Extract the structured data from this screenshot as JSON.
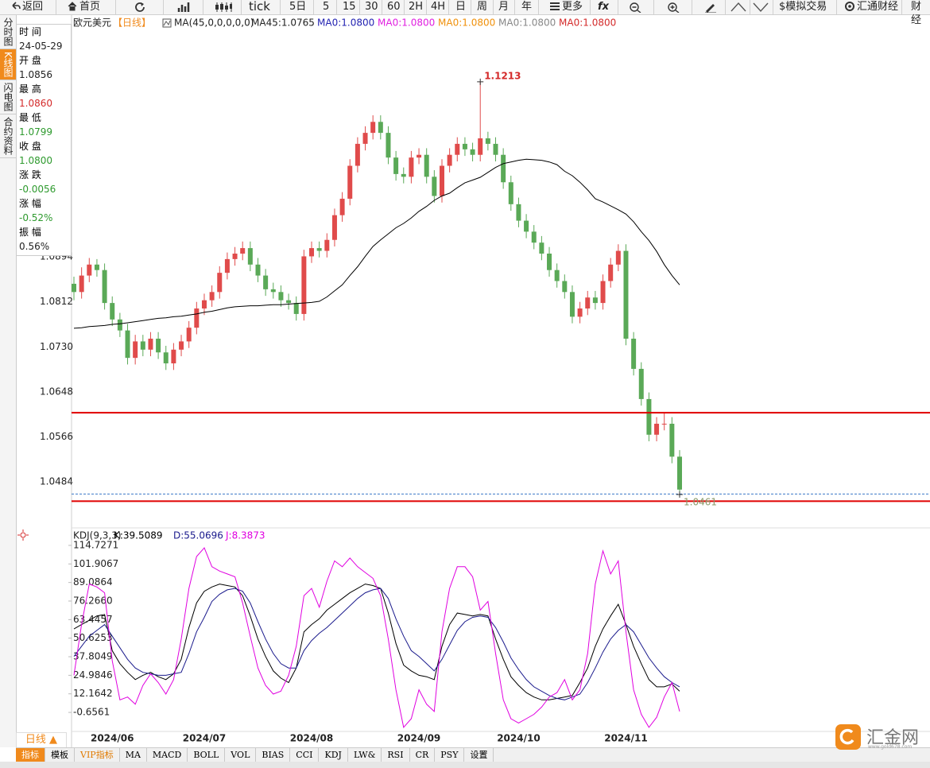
{
  "toolbar": [
    "返回",
    "首页",
    "tick",
    "5日",
    "5",
    "15",
    "30",
    "60",
    "2H",
    "4H",
    "日",
    "周",
    "月",
    "年",
    "更多",
    "fx",
    "$模拟交易",
    "汇通财经",
    "财经"
  ],
  "side_tabs": [
    "分时图",
    "K线图",
    "闪电图",
    "合约资料"
  ],
  "info_panel": [
    {
      "label": "时 间",
      "value": "24-05-29"
    },
    {
      "label": "开 盘",
      "value": "1.0856"
    },
    {
      "label": "最 高",
      "value": "1.0860"
    },
    {
      "label": "最 低",
      "value": "1.0799"
    },
    {
      "label": "收 盘",
      "value": "1.0800"
    },
    {
      "label": "涨 跌",
      "value": "-0.0056"
    },
    {
      "label": "涨 幅",
      "value": "-0.52%"
    },
    {
      "label": "振 幅",
      "value": "0.56%"
    }
  ],
  "bottom": {
    "period": "日线 ▲",
    "tabs": [
      "指标",
      "模板",
      "VIP指标",
      "MA",
      "MACD",
      "BOLL",
      "VOL",
      "BIAS",
      "CCI",
      "KDJ",
      "LW&",
      "RSI",
      "CR",
      "PSY",
      "设置"
    ]
  },
  "watermark": {
    "title": "汇金网",
    "url": "www.gold678.com"
  },
  "chart_data": [
    {
      "type": "candlestick",
      "title": "欧元美元",
      "subtitle": "【日线】",
      "indicator": "MA(45,0,0,0,0,0)",
      "up_color": "#e04b4b",
      "down_color": "#5aa957",
      "ylim": [
        1.0406,
        1.1336
      ],
      "yticks": [
        1.0894,
        1.0812,
        {
          "value": 1.073,
          "label": "1.0730"
        },
        1.0648,
        1.0566,
        1.0484
      ],
      "open": [
        1.0845,
        1.083,
        1.086,
        1.088,
        1.087,
        1.081,
        1.078,
        1.076,
        1.071,
        1.074,
        1.0725,
        1.0745,
        1.072,
        1.07,
        1.0725,
        1.074,
        1.0765,
        1.08,
        1.0815,
        1.083,
        1.0865,
        1.089,
        1.09,
        1.091,
        1.088,
        1.086,
        1.0835,
        1.083,
        1.0815,
        1.081,
        1.079,
        1.0895,
        1.091,
        1.0905,
        1.0925,
        1.097,
        1.1,
        1.106,
        1.11,
        1.112,
        1.114,
        1.112,
        1.1075,
        1.1045,
        1.104,
        1.1075,
        1.108,
        1.104,
        1.1005,
        1.106,
        1.108,
        1.11,
        1.109,
        1.108,
        1.111,
        1.11,
        1.108,
        1.103,
        1.099,
        1.096,
        1.094,
        1.092,
        1.09,
        1.087,
        1.085,
        1.083,
        1.0785,
        1.08,
        1.082,
        1.081,
        1.085,
        1.088,
        1.0905,
        1.0745,
        1.069,
        1.0635,
        1.057,
        1.059,
        1.059,
        1.053
      ],
      "high": [
        1.0858,
        1.0875,
        1.0892,
        1.089,
        1.0882,
        1.0822,
        1.0792,
        1.0772,
        1.0752,
        1.0752,
        1.0757,
        1.0757,
        1.0732,
        1.0737,
        1.0752,
        1.0777,
        1.0812,
        1.0827,
        1.0842,
        1.0877,
        1.0902,
        1.0912,
        1.0922,
        1.0922,
        1.0892,
        1.0872,
        1.0847,
        1.0842,
        1.0827,
        1.0822,
        1.0907,
        1.0922,
        1.0922,
        1.0937,
        1.0982,
        1.1012,
        1.1072,
        1.1112,
        1.1132,
        1.1152,
        1.1152,
        1.1132,
        1.1087,
        1.1057,
        1.1087,
        1.1092,
        1.1092,
        1.1052,
        1.1072,
        1.1092,
        1.1112,
        1.1112,
        1.1102,
        1.1213,
        1.1122,
        1.1112,
        1.1092,
        1.1042,
        1.1002,
        1.0972,
        1.0952,
        1.0932,
        1.0912,
        1.0882,
        1.0862,
        1.0842,
        1.0812,
        1.0832,
        1.0832,
        1.0862,
        1.0892,
        1.0917,
        1.0917,
        1.0757,
        1.0702,
        1.0647,
        1.0602,
        1.061,
        1.0602,
        1.0542
      ],
      "low": [
        1.0815,
        1.0818,
        1.0848,
        1.0858,
        1.0798,
        1.0768,
        1.0748,
        1.0698,
        1.0698,
        1.0713,
        1.0713,
        1.0708,
        1.0688,
        1.0688,
        1.0713,
        1.0728,
        1.0753,
        1.0788,
        1.0803,
        1.0818,
        1.0853,
        1.0878,
        1.0888,
        1.0868,
        1.0848,
        1.0823,
        1.0818,
        1.0803,
        1.0798,
        1.0778,
        1.0778,
        1.0883,
        1.0893,
        1.0893,
        1.0913,
        1.0958,
        1.0988,
        1.1048,
        1.1088,
        1.1108,
        1.1108,
        1.1063,
        1.1033,
        1.1028,
        1.1028,
        1.1063,
        1.1028,
        1.0993,
        1.0993,
        1.1048,
        1.1068,
        1.1078,
        1.1068,
        1.1068,
        1.1088,
        1.1068,
        1.1018,
        1.0978,
        1.0948,
        1.0928,
        1.0908,
        1.0888,
        1.0858,
        1.0838,
        1.0818,
        1.0773,
        1.0773,
        1.0788,
        1.0798,
        1.0798,
        1.0838,
        1.0868,
        1.0733,
        1.0678,
        1.0623,
        1.0558,
        1.0558,
        1.0578,
        1.0518,
        1.0461
      ],
      "close": [
        1.083,
        1.086,
        1.088,
        1.087,
        1.081,
        1.078,
        1.076,
        1.071,
        1.074,
        1.0725,
        1.0745,
        1.072,
        1.07,
        1.0725,
        1.074,
        1.0765,
        1.08,
        1.0815,
        1.083,
        1.0865,
        1.089,
        1.09,
        1.091,
        1.088,
        1.086,
        1.0835,
        1.083,
        1.0815,
        1.081,
        1.079,
        1.0895,
        1.091,
        1.0905,
        1.0925,
        1.097,
        1.1,
        1.106,
        1.11,
        1.112,
        1.114,
        1.112,
        1.1075,
        1.1045,
        1.104,
        1.1075,
        1.108,
        1.104,
        1.1005,
        1.106,
        1.108,
        1.11,
        1.109,
        1.108,
        1.111,
        1.11,
        1.108,
        1.103,
        1.099,
        1.096,
        1.094,
        1.092,
        1.09,
        1.087,
        1.085,
        1.083,
        1.0785,
        1.08,
        1.082,
        1.081,
        1.085,
        1.088,
        1.0905,
        1.0745,
        1.069,
        1.0635,
        1.057,
        1.059,
        1.059,
        1.053,
        1.047
      ],
      "series": [
        {
          "name": "MA45:1.0765",
          "color": "#000000",
          "values": [
            1.0764,
            1.0765,
            1.0767,
            1.0768,
            1.0769,
            1.0771,
            1.0772,
            1.0774,
            1.0776,
            1.0778,
            1.078,
            1.0782,
            1.0783,
            1.0785,
            1.0786,
            1.0788,
            1.079,
            1.0793,
            1.0795,
            1.0798,
            1.0801,
            1.0803,
            1.0804,
            1.0805,
            1.0805,
            1.0806,
            1.0807,
            1.0807,
            1.0808,
            1.0809,
            1.081,
            1.0811,
            1.0813,
            1.0821,
            1.0832,
            1.0843,
            1.086,
            1.0876,
            1.0895,
            1.0913,
            1.0925,
            1.0936,
            1.0947,
            1.0955,
            1.0965,
            1.0977,
            1.0986,
            1.0997,
            1.1005,
            1.101,
            1.102,
            1.1029,
            1.1034,
            1.1039,
            1.1048,
            1.1057,
            1.1064,
            1.1067,
            1.107,
            1.1072,
            1.1071,
            1.107,
            1.1067,
            1.1062,
            1.105,
            1.1042,
            1.103,
            1.1016,
            1.1,
            1.0994,
            1.0987,
            1.098,
            1.0972,
            1.0958,
            1.094,
            1.0924,
            1.0904,
            1.088,
            1.086,
            1.0843
          ]
        }
      ],
      "legend_items": [
        {
          "name": "MA0:1.0800",
          "color": "#1f1fb0"
        },
        {
          "name": "MA0:1.0800",
          "color": "#e01ee0"
        },
        {
          "name": "MA0:1.0800",
          "color": "#f0900a"
        },
        {
          "name": "MA0:1.0800",
          "color": "#888888"
        },
        {
          "name": "MA0:1.0800",
          "color": "#d42a2a"
        }
      ],
      "high_label": {
        "value": 1.1213,
        "label": "1.1213",
        "color": "#d42a2a"
      },
      "low_label": {
        "value": 1.0461,
        "label": "1.0461",
        "color": "#8a9a6a"
      },
      "hlines": [
        {
          "value": 1.061,
          "color": "#e00000"
        },
        {
          "value": 1.0449,
          "color": "#e00000"
        }
      ],
      "price_line": {
        "value": 1.0462,
        "color": "#3a78c8"
      }
    },
    {
      "type": "line",
      "title": "KDJ(9,3,3)",
      "ylim": [
        -13.8,
        124.6
      ],
      "yticks": [
        114.7271,
        101.9067,
        89.0864,
        {
          "value": 76.266,
          "label": "76.2660"
        },
        63.4457,
        50.6253,
        37.8049,
        24.9846,
        12.1642,
        -0.6561
      ],
      "categories": [
        null,
        null,
        null,
        null,
        null,
        "2024/06",
        null,
        null,
        null,
        null,
        null,
        null,
        null,
        null,
        null,
        null,
        null,
        "2024/07",
        null,
        null,
        null,
        null,
        null,
        null,
        null,
        null,
        null,
        null,
        null,
        null,
        null,
        "2024/08",
        null,
        null,
        null,
        null,
        null,
        null,
        null,
        null,
        null,
        null,
        null,
        null,
        null,
        "2024/09",
        null,
        null,
        null,
        null,
        null,
        null,
        null,
        null,
        null,
        null,
        null,
        null,
        "2024/10",
        null,
        null,
        null,
        null,
        null,
        null,
        null,
        null,
        null,
        null,
        null,
        null,
        null,
        "2024/11",
        null,
        null,
        null,
        null,
        null,
        null,
        null
      ],
      "series": [
        {
          "name": "K:39.5089",
          "color": "#000000",
          "values": [
            57,
            60,
            63,
            66,
            67,
            42,
            33,
            27,
            22,
            25,
            27,
            24,
            22,
            26,
            36,
            58,
            75,
            83,
            86,
            88,
            87,
            86,
            80,
            66,
            50,
            38,
            28,
            23,
            20,
            30,
            55,
            60,
            64,
            70,
            74,
            78,
            82,
            85,
            88,
            87,
            85,
            68,
            47,
            32,
            28,
            25,
            24,
            22,
            45,
            60,
            68,
            67,
            66,
            67,
            66,
            50,
            36,
            24,
            18,
            13,
            10,
            8,
            8,
            9,
            10,
            11,
            20,
            30,
            45,
            57,
            66,
            74,
            60,
            45,
            33,
            22,
            17,
            17,
            19,
            14
          ]
        },
        {
          "name": "D:55.0696",
          "color": "#1a1a8c",
          "values": [
            38,
            45,
            52,
            56,
            60,
            52,
            44,
            36,
            30,
            27,
            26,
            25,
            25,
            26,
            27,
            40,
            55,
            65,
            76,
            81,
            84,
            85,
            83,
            75,
            62,
            50,
            40,
            33,
            30,
            30,
            42,
            49,
            54,
            58,
            63,
            68,
            73,
            78,
            82,
            84,
            85,
            78,
            64,
            52,
            42,
            38,
            33,
            28,
            36,
            46,
            56,
            62,
            65,
            66,
            65,
            58,
            48,
            37,
            29,
            22,
            17,
            14,
            11,
            9,
            8,
            10,
            12,
            20,
            30,
            41,
            50,
            56,
            60,
            55,
            46,
            37,
            30,
            24,
            20,
            17
          ]
        },
        {
          "name": "J:8.3873",
          "color": "#e000e0",
          "values": [
            25,
            60,
            88,
            86,
            82,
            35,
            8,
            10,
            5,
            18,
            26,
            20,
            12,
            22,
            50,
            85,
            107,
            113,
            100,
            97,
            95,
            93,
            75,
            52,
            30,
            18,
            12,
            14,
            25,
            45,
            80,
            85,
            72,
            90,
            104,
            100,
            106,
            100,
            96,
            92,
            80,
            50,
            15,
            -11,
            -5,
            15,
            5,
            0,
            55,
            85,
            100,
            100,
            93,
            70,
            76,
            40,
            8,
            -5,
            -8,
            -5,
            -2,
            3,
            10,
            13,
            22,
            8,
            15,
            40,
            88,
            111,
            95,
            104,
            55,
            15,
            -2,
            -11,
            -4,
            10,
            20,
            0
          ]
        }
      ]
    }
  ]
}
